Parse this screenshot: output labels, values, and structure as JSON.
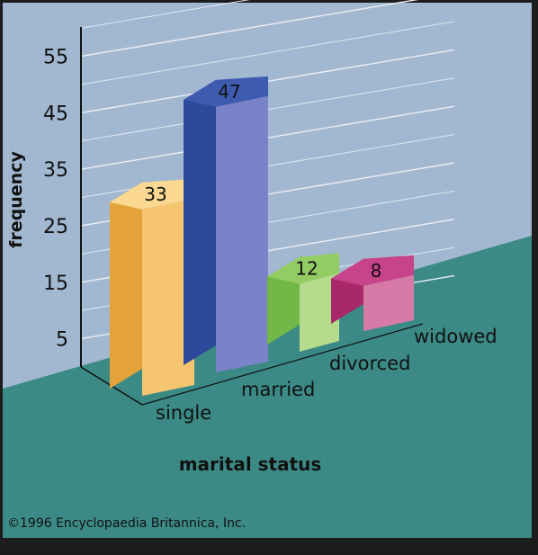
{
  "chart_data": {
    "type": "bar",
    "categories": [
      "single",
      "married",
      "divorced",
      "widowed"
    ],
    "values": [
      33,
      47,
      12,
      8
    ],
    "value_labels": [
      "33",
      "47",
      "12",
      "8"
    ],
    "xlabel": "marital status",
    "ylabel": "frequency",
    "y_ticks": [
      "5",
      "15",
      "25",
      "35",
      "45",
      "55"
    ],
    "grid": true,
    "three_d": true
  },
  "copyright": "©1996 Encyclopaedia Britannica, Inc.",
  "colors": {
    "background_wall": "#a2b8d0",
    "floor": "#3b8a85",
    "frame": "#1c1c1c",
    "bars": [
      {
        "front": "#f6c56f",
        "side": "#e4a338",
        "top": "#fbd993"
      },
      {
        "front": "#7a82c8",
        "side": "#2d4a9a",
        "top": "#3f5bb0"
      },
      {
        "front": "#b5dc8c",
        "side": "#72b848",
        "top": "#94cc64"
      },
      {
        "front": "#d87aa8",
        "side": "#a8286a",
        "top": "#c8448a"
      }
    ]
  }
}
